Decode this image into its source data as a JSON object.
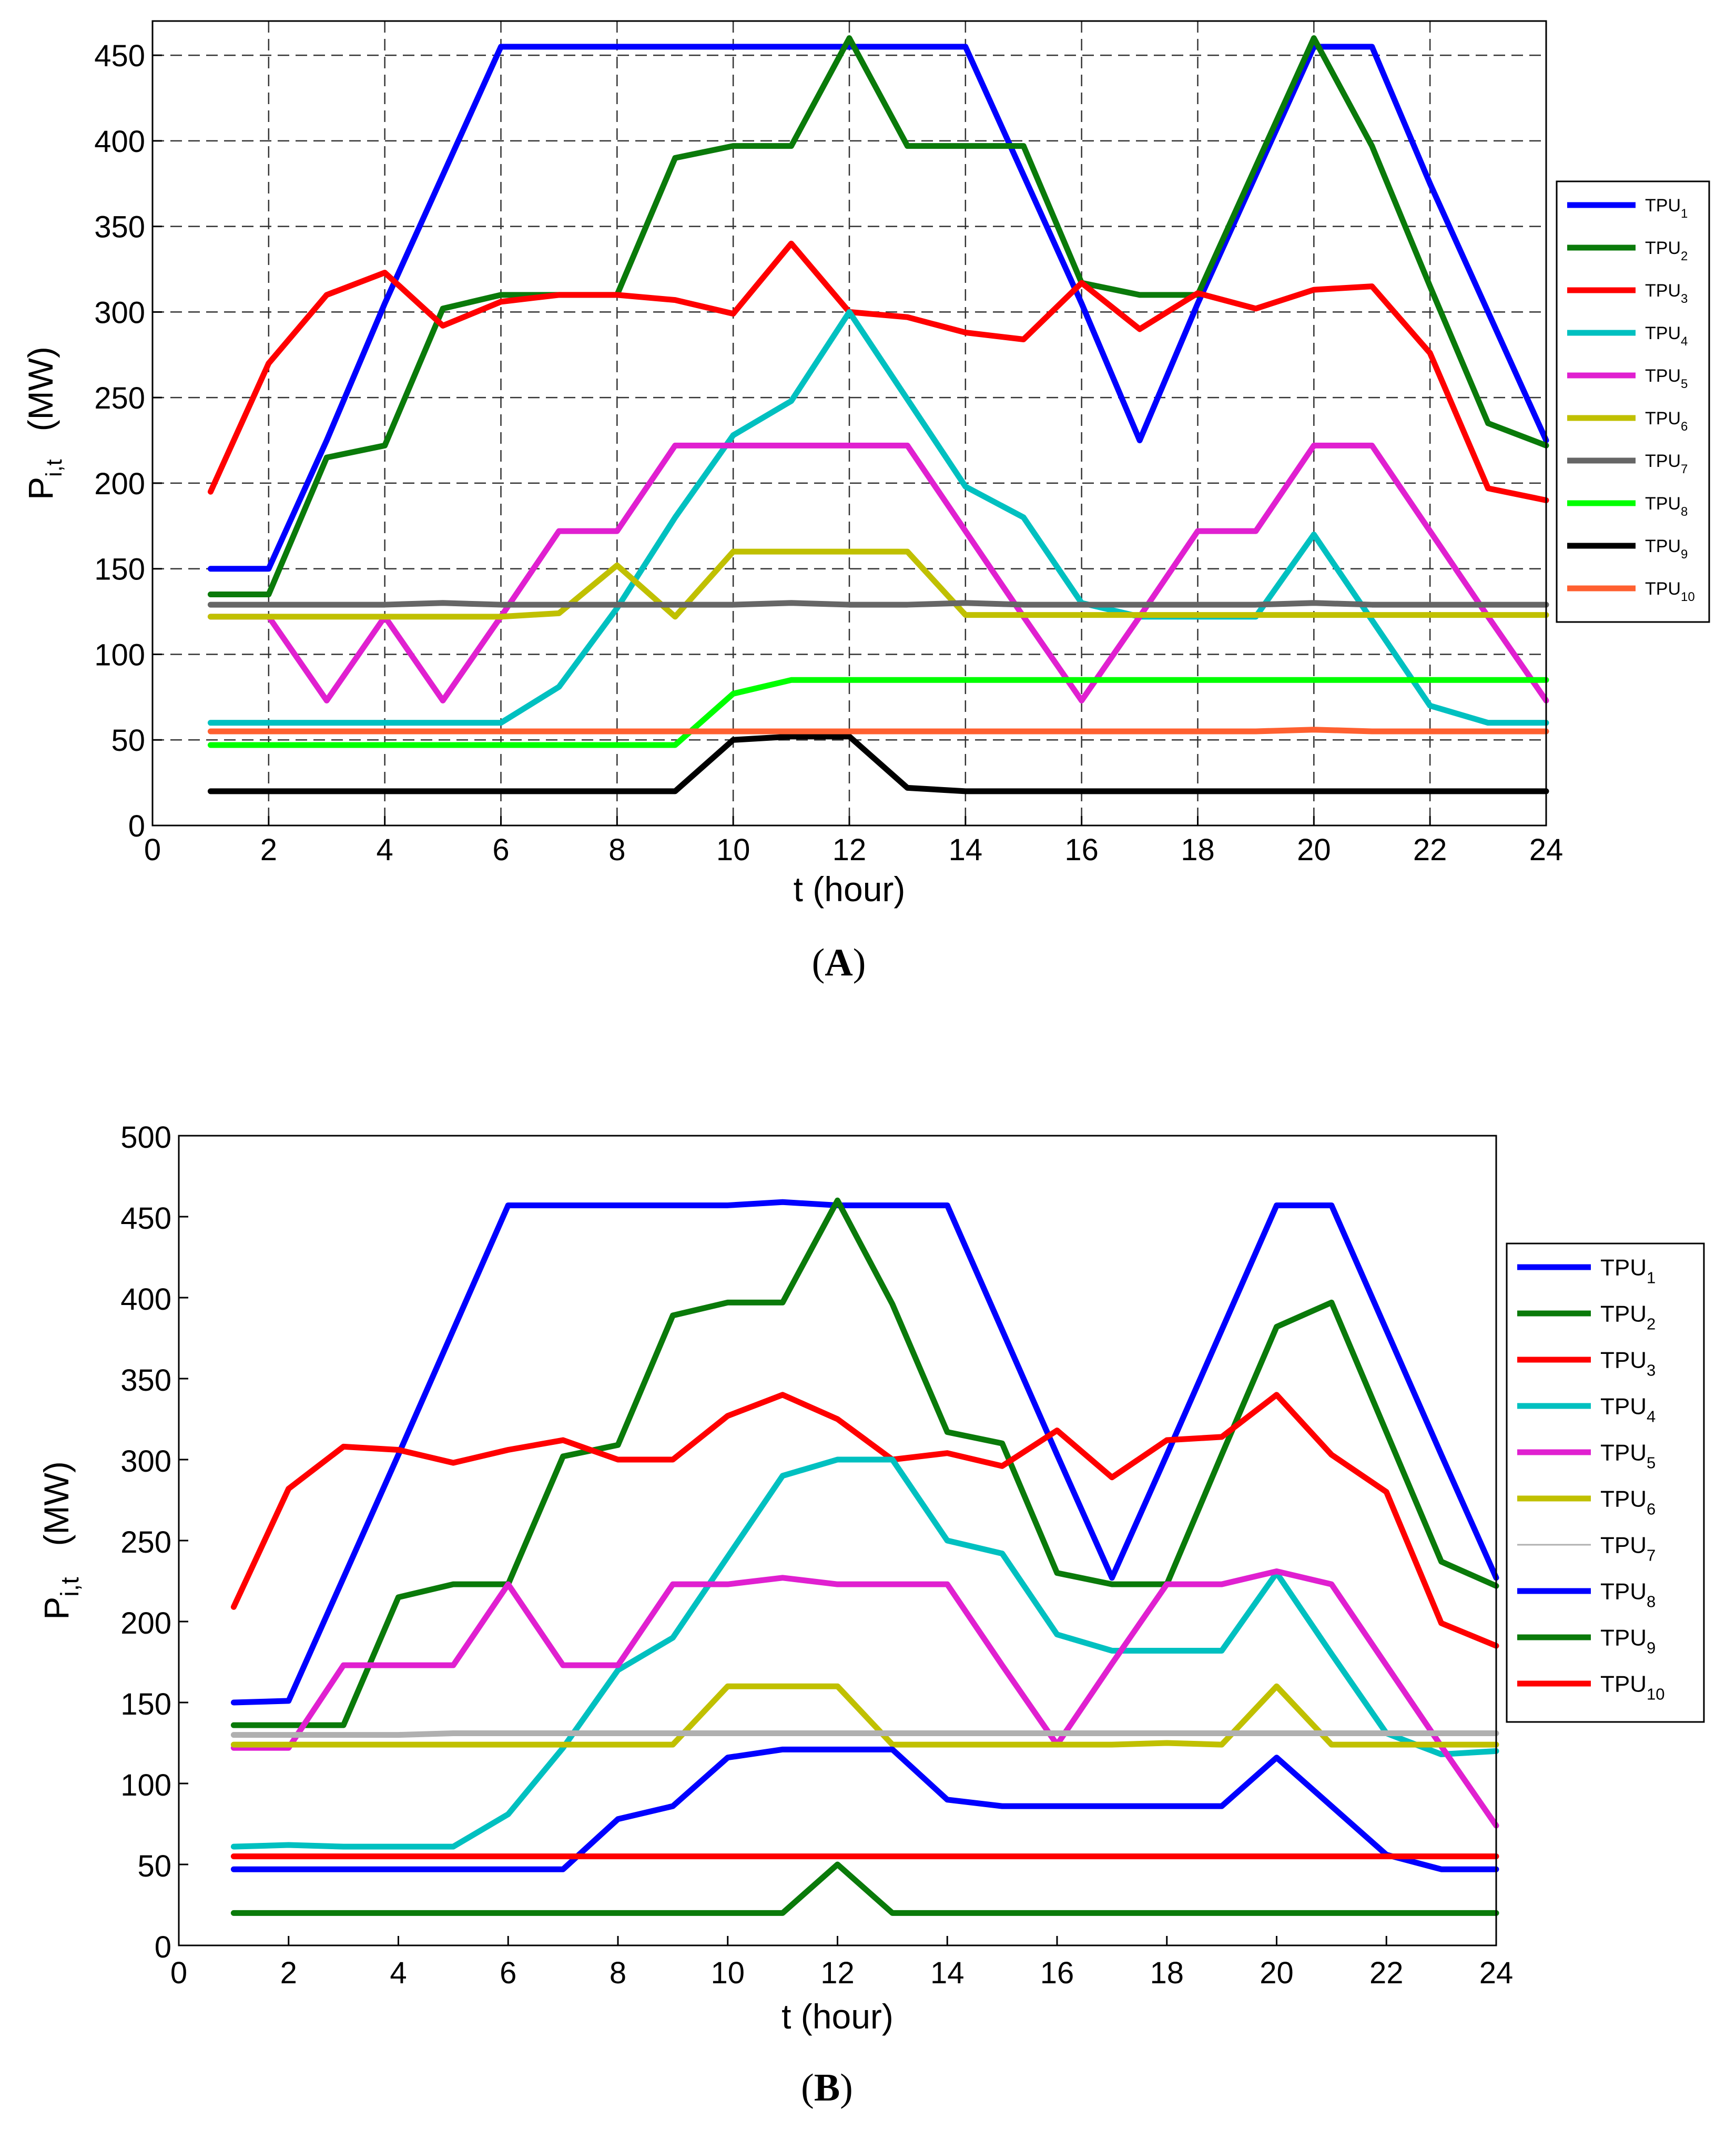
{
  "chart_data": [
    {
      "type": "line",
      "panel": "A",
      "xlabel": "t   (hour)",
      "ylabel": "P",
      "ylabel_sub": "i,t",
      "ylabel_unit": "(MW)",
      "xlim": [
        0,
        24
      ],
      "ylim": [
        0,
        470
      ],
      "xticks": [
        0,
        2,
        4,
        6,
        8,
        10,
        12,
        14,
        16,
        18,
        20,
        22,
        24
      ],
      "yticks": [
        0,
        50,
        100,
        150,
        200,
        250,
        300,
        350,
        400,
        450
      ],
      "grid": true,
      "legend_position": "right",
      "x": [
        1,
        2,
        3,
        4,
        5,
        6,
        7,
        8,
        9,
        10,
        11,
        12,
        13,
        14,
        15,
        16,
        17,
        18,
        19,
        20,
        21,
        22,
        23,
        24
      ],
      "series": [
        {
          "name": "TPU",
          "sub": "1",
          "color": "#0000ff",
          "values": [
            150,
            150,
            225,
            305,
            380,
            455,
            455,
            455,
            455,
            455,
            455,
            455,
            455,
            455,
            380,
            305,
            225,
            305,
            380,
            455,
            455,
            375,
            300,
            225
          ]
        },
        {
          "name": "TPU",
          "sub": "2",
          "color": "#0a7a0a",
          "values": [
            135,
            135,
            215,
            222,
            302,
            310,
            310,
            310,
            390,
            397,
            397,
            460,
            397,
            397,
            397,
            317,
            310,
            310,
            385,
            460,
            397,
            315,
            235,
            222
          ]
        },
        {
          "name": "TPU",
          "sub": "3",
          "color": "#ff0000",
          "values": [
            195,
            270,
            310,
            323,
            292,
            306,
            310,
            310,
            307,
            299,
            340,
            300,
            297,
            288,
            284,
            317,
            290,
            311,
            302,
            313,
            315,
            276,
            197,
            190
          ]
        },
        {
          "name": "TPU",
          "sub": "4",
          "color": "#00c0c0",
          "values": [
            60,
            60,
            60,
            60,
            60,
            60,
            81,
            127,
            180,
            228,
            248,
            300,
            249,
            198,
            180,
            130,
            122,
            122,
            122,
            170,
            120,
            70,
            60,
            60
          ]
        },
        {
          "name": "TPU",
          "sub": "5",
          "color": "#e020d0",
          "values": [
            122,
            122,
            73,
            122,
            73,
            122,
            172,
            172,
            222,
            222,
            222,
            222,
            222,
            172,
            122,
            73,
            122,
            172,
            172,
            222,
            222,
            172,
            122,
            73
          ]
        },
        {
          "name": "TPU",
          "sub": "6",
          "color": "#c0c000",
          "values": [
            122,
            122,
            122,
            122,
            122,
            122,
            124,
            152,
            122,
            160,
            160,
            160,
            160,
            123,
            123,
            123,
            123,
            123,
            123,
            123,
            123,
            123,
            123,
            123
          ]
        },
        {
          "name": "TPU",
          "sub": "7",
          "color": "#666666",
          "values": [
            129,
            129,
            129,
            129,
            130,
            129,
            129,
            129,
            129,
            129,
            130,
            129,
            129,
            130,
            129,
            129,
            129,
            129,
            129,
            130,
            129,
            129,
            129,
            129
          ]
        },
        {
          "name": "TPU",
          "sub": "8",
          "color": "#00ff00",
          "values": [
            47,
            47,
            47,
            47,
            47,
            47,
            47,
            47,
            47,
            77,
            85,
            85,
            85,
            85,
            85,
            85,
            85,
            85,
            85,
            85,
            85,
            85,
            85,
            85
          ]
        },
        {
          "name": "TPU",
          "sub": "9",
          "color": "#000000",
          "values": [
            20,
            20,
            20,
            20,
            20,
            20,
            20,
            20,
            20,
            50,
            52,
            52,
            22,
            20,
            20,
            20,
            20,
            20,
            20,
            20,
            20,
            20,
            20,
            20
          ]
        },
        {
          "name": "TPU",
          "sub": "10",
          "color": "#ff6030",
          "values": [
            55,
            55,
            55,
            55,
            55,
            55,
            55,
            55,
            55,
            55,
            55,
            55,
            55,
            55,
            55,
            55,
            55,
            55,
            55,
            56,
            55,
            55,
            55,
            55
          ]
        }
      ]
    },
    {
      "type": "line",
      "panel": "B",
      "xlabel": "t   (hour)",
      "ylabel": "P",
      "ylabel_sub": "i,t",
      "ylabel_unit": "(MW)",
      "xlim": [
        0,
        24
      ],
      "ylim": [
        0,
        500
      ],
      "xticks": [
        0,
        2,
        4,
        6,
        8,
        10,
        12,
        14,
        16,
        18,
        20,
        22,
        24
      ],
      "yticks": [
        0,
        50,
        100,
        150,
        200,
        250,
        300,
        350,
        400,
        450,
        500
      ],
      "grid": false,
      "legend_position": "right",
      "x": [
        1,
        2,
        3,
        4,
        5,
        6,
        7,
        8,
        9,
        10,
        11,
        12,
        13,
        14,
        15,
        16,
        17,
        18,
        19,
        20,
        21,
        22,
        23,
        24
      ],
      "series": [
        {
          "name": "TPU",
          "sub": "1",
          "color": "#0000ff",
          "thin": false,
          "values": [
            150,
            151,
            227,
            303,
            380,
            457,
            457,
            457,
            457,
            457,
            459,
            457,
            457,
            457,
            380,
            303,
            227,
            303,
            380,
            457,
            457,
            380,
            303,
            227
          ]
        },
        {
          "name": "TPU",
          "sub": "2",
          "color": "#0a7a0a",
          "thin": false,
          "values": [
            136,
            136,
            136,
            215,
            223,
            223,
            302,
            309,
            389,
            397,
            397,
            460,
            396,
            317,
            310,
            230,
            223,
            223,
            303,
            382,
            397,
            317,
            237,
            222
          ]
        },
        {
          "name": "TPU",
          "sub": "3",
          "color": "#ff0000",
          "thin": false,
          "values": [
            209,
            282,
            308,
            306,
            298,
            306,
            312,
            300,
            300,
            327,
            340,
            325,
            300,
            304,
            296,
            318,
            289,
            312,
            314,
            340,
            303,
            280,
            199,
            185
          ]
        },
        {
          "name": "TPU",
          "sub": "4",
          "color": "#00c0c0",
          "thin": false,
          "values": [
            61,
            62,
            61,
            61,
            61,
            81,
            122,
            170,
            190,
            240,
            290,
            300,
            300,
            250,
            242,
            192,
            182,
            182,
            182,
            230,
            180,
            131,
            118,
            120
          ]
        },
        {
          "name": "TPU",
          "sub": "5",
          "color": "#e020d0",
          "thin": false,
          "values": [
            122,
            122,
            173,
            173,
            173,
            223,
            173,
            173,
            223,
            223,
            227,
            223,
            223,
            223,
            173,
            124,
            174,
            223,
            223,
            231,
            223,
            173,
            123,
            74
          ]
        },
        {
          "name": "TPU",
          "sub": "6",
          "color": "#c0c000",
          "thin": false,
          "values": [
            124,
            124,
            124,
            124,
            124,
            124,
            124,
            124,
            124,
            160,
            160,
            160,
            124,
            124,
            124,
            124,
            124,
            125,
            124,
            160,
            124,
            124,
            124,
            124
          ]
        },
        {
          "name": "TPU",
          "sub": "7",
          "color": "#b0b0b0",
          "thin": true,
          "values": [
            130,
            130,
            130,
            130,
            131,
            131,
            131,
            131,
            131,
            131,
            131,
            131,
            131,
            131,
            131,
            131,
            131,
            131,
            131,
            131,
            131,
            131,
            131,
            131
          ]
        },
        {
          "name": "TPU",
          "sub": "8",
          "color": "#0000ff",
          "thin": false,
          "values": [
            47,
            47,
            47,
            47,
            47,
            47,
            47,
            78,
            86,
            116,
            121,
            121,
            121,
            90,
            86,
            86,
            86,
            86,
            86,
            116,
            86,
            56,
            47,
            47
          ]
        },
        {
          "name": "TPU",
          "sub": "9",
          "color": "#0a7a0a",
          "thin": false,
          "values": [
            20,
            20,
            20,
            20,
            20,
            20,
            20,
            20,
            20,
            20,
            20,
            50,
            20,
            20,
            20,
            20,
            20,
            20,
            20,
            20,
            20,
            20,
            20,
            20
          ]
        },
        {
          "name": "TPU",
          "sub": "10",
          "color": "#ff0000",
          "thin": false,
          "values": [
            55,
            55,
            55,
            55,
            55,
            55,
            55,
            55,
            55,
            55,
            55,
            55,
            55,
            55,
            55,
            55,
            55,
            55,
            55,
            55,
            55,
            55,
            55,
            55
          ]
        }
      ]
    }
  ]
}
